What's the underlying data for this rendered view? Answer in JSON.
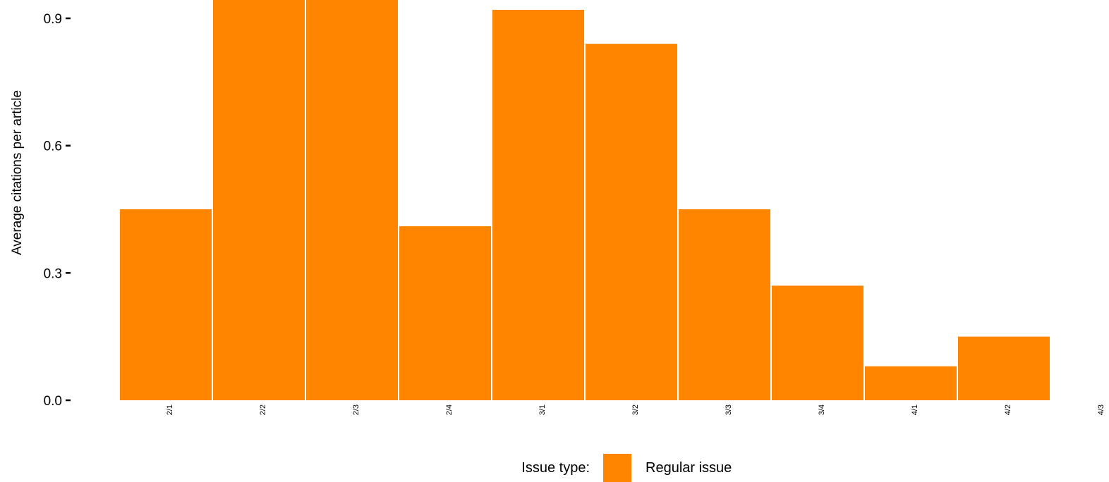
{
  "chart_data": {
    "type": "bar",
    "categories": [
      "2/1",
      "2/2",
      "2/3",
      "2/4",
      "3/1",
      "3/2",
      "3/3",
      "3/4",
      "4/1",
      "4/2",
      "4/3"
    ],
    "series": [
      {
        "name": "Regular issue",
        "values": [
          0.45,
          0.95,
          0.95,
          0.41,
          0.92,
          0.84,
          0.45,
          0.27,
          0.08,
          0.15,
          null
        ],
        "color": "#FF8500"
      }
    ],
    "title": "",
    "xlabel": "",
    "ylabel": "Average citations per article",
    "ylim": [
      0,
      0.9
    ],
    "yticks": [
      {
        "value": 0.0,
        "label": "0.0"
      },
      {
        "value": 0.3,
        "label": "0.3"
      },
      {
        "value": 0.6,
        "label": "0.6"
      },
      {
        "value": 0.9,
        "label": "0.9"
      }
    ],
    "grid": false,
    "legend": {
      "title": "Issue type:",
      "position": "bottom",
      "entries": [
        {
          "label": "Regular issue",
          "color": "#FF8500"
        }
      ]
    }
  }
}
